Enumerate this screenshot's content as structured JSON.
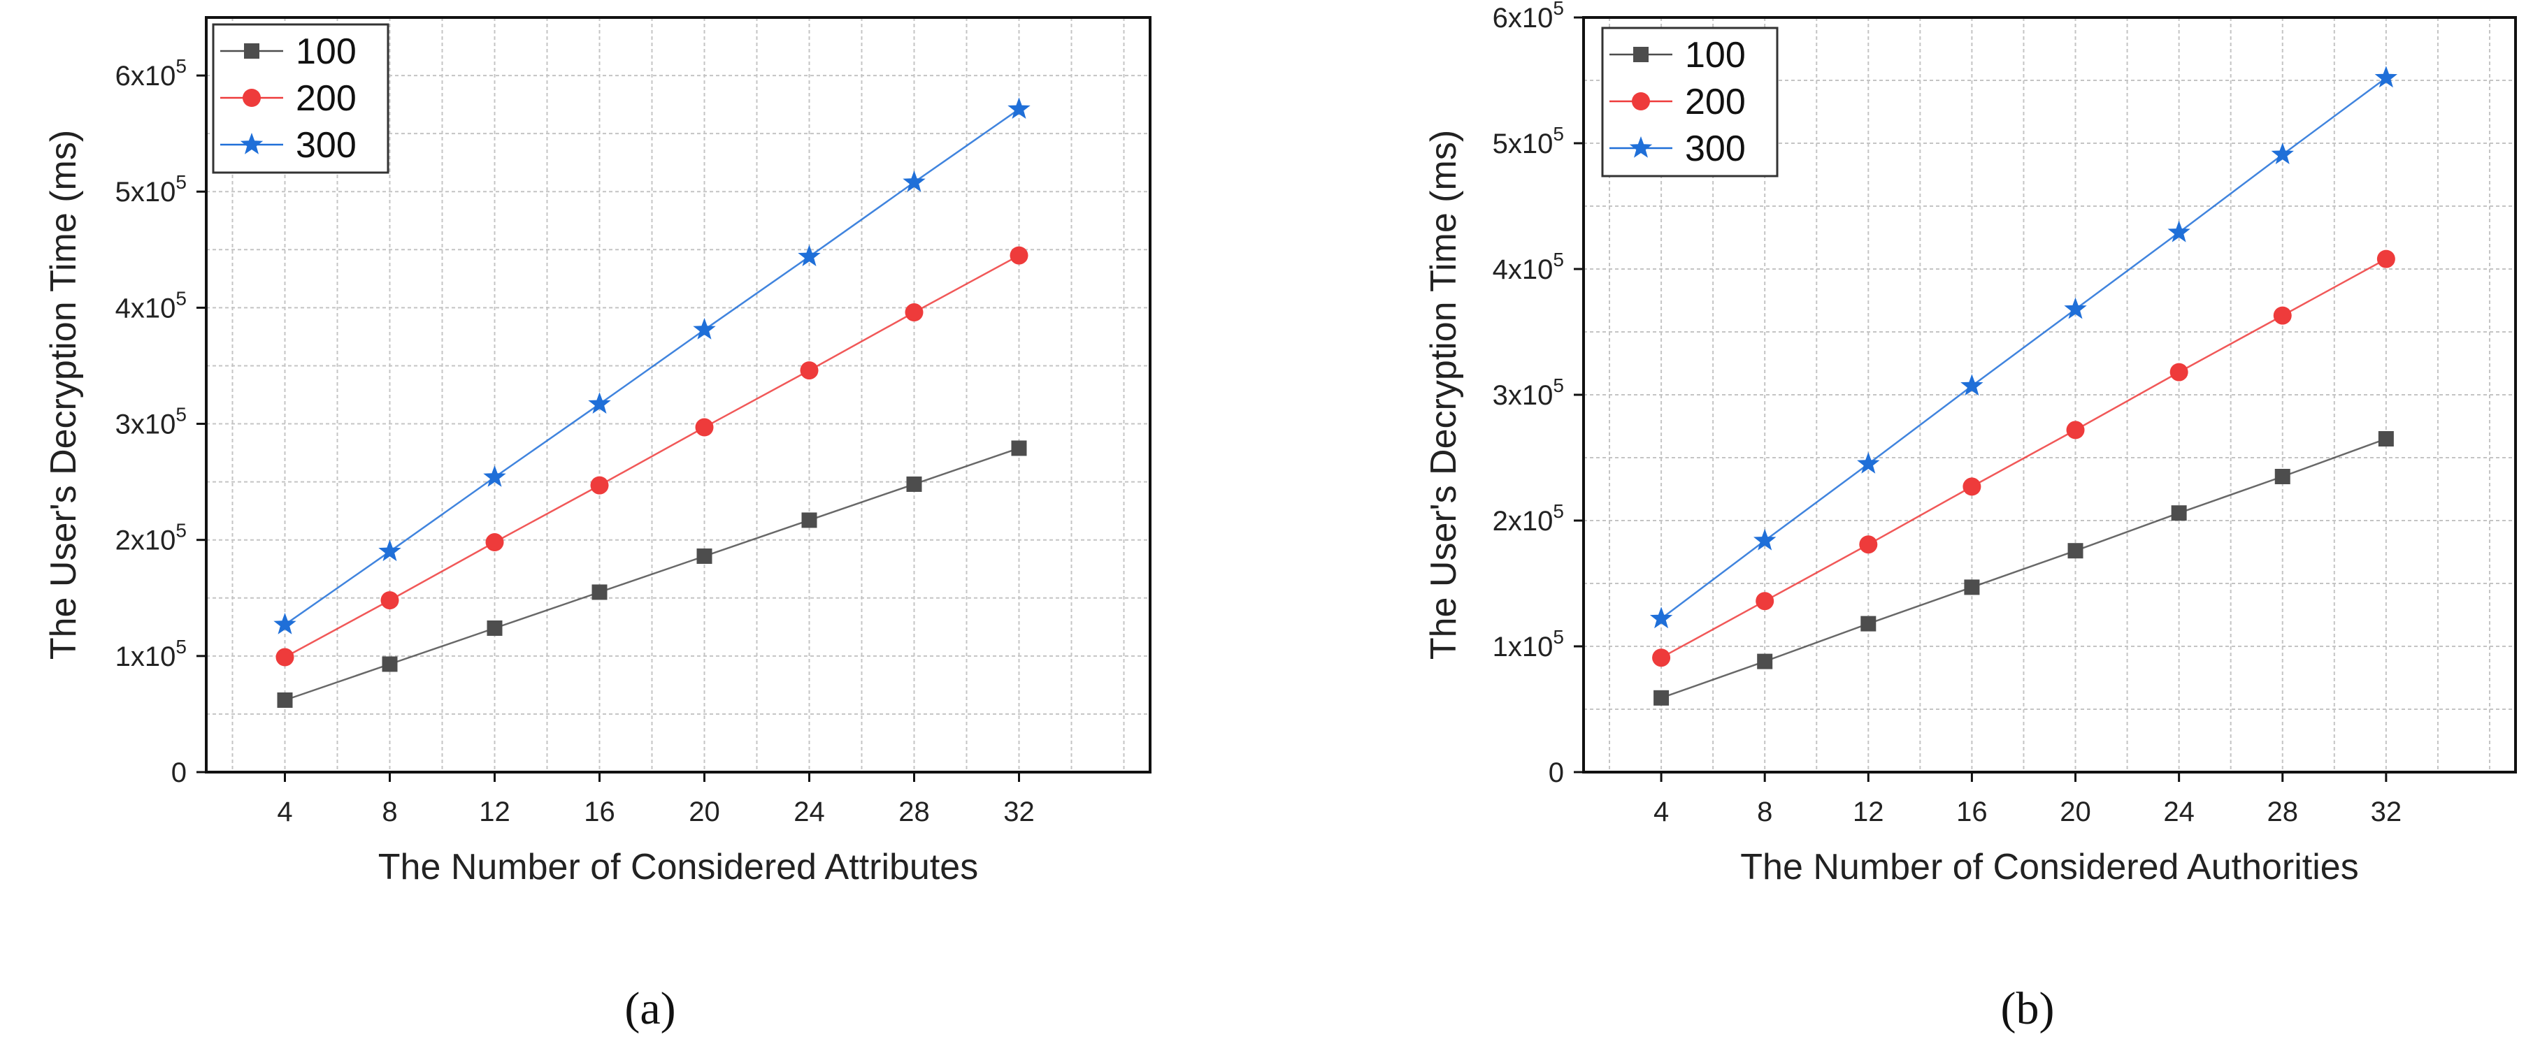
{
  "chart_data": [
    {
      "id": "a",
      "type": "line",
      "caption": "(a)",
      "xlabel": "The Number of Considered Attributes",
      "ylabel": "The User's Decryption Time (ms)",
      "x": [
        4,
        8,
        12,
        16,
        20,
        24,
        28,
        32
      ],
      "xlim": [
        1,
        37
      ],
      "ylim": [
        0,
        650000
      ],
      "yticks": [
        0,
        100000,
        200000,
        300000,
        400000,
        500000,
        600000
      ],
      "ytick_mantissas": [
        "0",
        "1",
        "2",
        "3",
        "4",
        "5",
        "6"
      ],
      "ytick_base": "x10",
      "ytick_exponent": "5",
      "grid": true,
      "legend_position": "top-left",
      "series": [
        {
          "name": "100",
          "marker": "square",
          "color": "#4d4d4d",
          "values": [
            62000,
            93000,
            124000,
            155000,
            186000,
            217000,
            248000,
            279000
          ]
        },
        {
          "name": "200",
          "marker": "circle",
          "color": "#ee3b3b",
          "values": [
            99000,
            148000,
            198000,
            247000,
            297000,
            346000,
            396000,
            445000
          ]
        },
        {
          "name": "300",
          "marker": "star",
          "color": "#1f6fd8",
          "values": [
            127000,
            190000,
            254000,
            317000,
            381000,
            444000,
            508000,
            571000
          ]
        }
      ]
    },
    {
      "id": "b",
      "type": "line",
      "caption": "(b)",
      "xlabel": "The Number of Considered Authorities",
      "ylabel": "The User's Decryption Time (ms)",
      "x": [
        4,
        8,
        12,
        16,
        20,
        24,
        28,
        32
      ],
      "xlim": [
        1,
        37
      ],
      "ylim": [
        0,
        600000
      ],
      "yticks": [
        0,
        100000,
        200000,
        300000,
        400000,
        500000,
        600000
      ],
      "ytick_mantissas": [
        "0",
        "1",
        "2",
        "3",
        "4",
        "5",
        "6"
      ],
      "ytick_base": "x10",
      "ytick_exponent": "5",
      "grid": true,
      "legend_position": "top-left",
      "series": [
        {
          "name": "100",
          "marker": "square",
          "color": "#4d4d4d",
          "values": [
            59000,
            88000,
            118000,
            147000,
            176000,
            206000,
            235000,
            265000
          ]
        },
        {
          "name": "200",
          "marker": "circle",
          "color": "#ee3b3b",
          "values": [
            91000,
            136000,
            181000,
            227000,
            272000,
            318000,
            363000,
            408000
          ]
        },
        {
          "name": "300",
          "marker": "star",
          "color": "#1f6fd8",
          "values": [
            122000,
            184000,
            245000,
            307000,
            368000,
            429000,
            491000,
            552000
          ]
        }
      ]
    }
  ]
}
